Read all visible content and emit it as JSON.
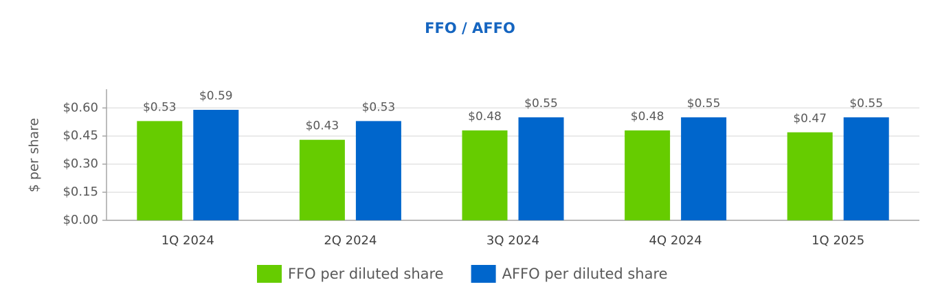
{
  "chart_data": {
    "type": "bar",
    "title": "FFO / AFFO",
    "ylabel": "$ per share",
    "categories": [
      "1Q 2024",
      "2Q 2024",
      "3Q 2024",
      "4Q 2024",
      "1Q 2025"
    ],
    "series": [
      {
        "name": "FFO per diluted share",
        "color": "#66cc00",
        "values": [
          0.53,
          0.43,
          0.48,
          0.48,
          0.47
        ],
        "value_labels": [
          "$0.53",
          "$0.43",
          "$0.48",
          "$0.48",
          "$0.47"
        ]
      },
      {
        "name": "AFFO per diluted share",
        "color": "#0066cc",
        "values": [
          0.59,
          0.53,
          0.55,
          0.55,
          0.55
        ],
        "value_labels": [
          "$0.59",
          "$0.53",
          "$0.55",
          "$0.55",
          "$0.55"
        ]
      }
    ],
    "ylim": [
      0,
      0.7
    ],
    "yticks": [
      {
        "value": 0,
        "label": "$0.00"
      },
      {
        "value": 0.15,
        "label": "$0.15"
      },
      {
        "value": 0.3,
        "label": "$0.30"
      },
      {
        "value": 0.45,
        "label": "$0.45"
      },
      {
        "value": 0.6,
        "label": "$0.60"
      }
    ],
    "grid": true,
    "legend": "bottom"
  }
}
